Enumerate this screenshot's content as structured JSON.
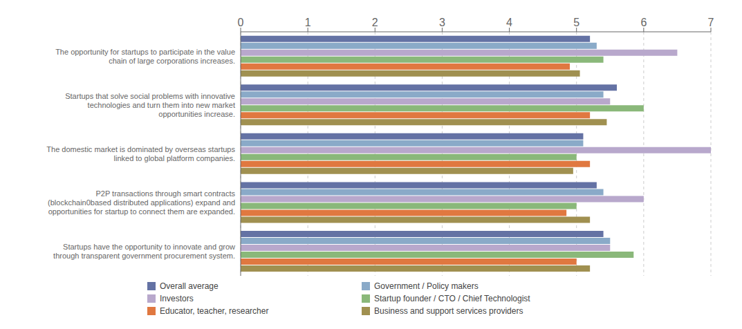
{
  "chart_data": {
    "type": "bar",
    "orientation": "horizontal",
    "categories": [
      "The opportunity for startups to participate in the value\nchain of large corporations increases.",
      "Startups that solve social problems with innovative\ntechnologies and turn them into new market\nopportunities increase.",
      "The domestic market is dominated by overseas startups\nlinked to global platform companies.",
      "P2P transactions through smart contracts\n(blockchain0based distributed applications) expand and\nopportunities for startup to connect them are expanded.",
      "Startups have the opportunity to innovate and grow\nthrough transparent government procurement system."
    ],
    "series": [
      {
        "name": "Overall average",
        "color": "#6472a4",
        "values": [
          5.2,
          5.6,
          5.1,
          5.3,
          5.4
        ]
      },
      {
        "name": "Government / Policy makers",
        "color": "#8aaac8",
        "values": [
          5.3,
          5.4,
          5.1,
          5.4,
          5.5
        ]
      },
      {
        "name": "Investors",
        "color": "#b8a8cc",
        "values": [
          6.5,
          5.5,
          7.0,
          6.0,
          5.5
        ]
      },
      {
        "name": "Startup founder / CTO / Chief Technologist",
        "color": "#8ab87a",
        "values": [
          5.4,
          6.0,
          5.0,
          5.0,
          5.85
        ]
      },
      {
        "name": "Educator, teacher, researcher",
        "color": "#e07840",
        "values": [
          4.9,
          5.2,
          5.2,
          4.85,
          5.0
        ]
      },
      {
        "name": "Business and support services providers",
        "color": "#a09050",
        "values": [
          5.05,
          5.45,
          4.95,
          5.2,
          5.2
        ]
      }
    ],
    "xlim": [
      0,
      7
    ],
    "xticks": [
      0,
      1,
      2,
      3,
      4,
      5,
      6,
      7
    ],
    "grid": true,
    "legend": "bottom"
  }
}
